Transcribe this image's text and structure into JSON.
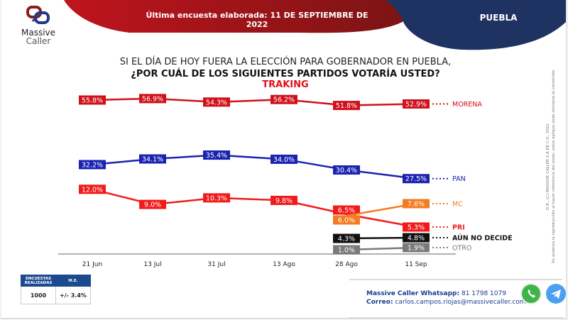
{
  "header": {
    "brand_line1": "Massive",
    "brand_line2": "Caller",
    "last_survey": "Última encuesta elaborada: 11 DE SEPTIEMBRE DE 2022",
    "state": "PUEBLA",
    "colors": {
      "red": "#b5121b",
      "navy": "#1e3362"
    }
  },
  "question": {
    "line1": "SI EL DÍA DE HOY FUERA LA ELECCIÓN PARA GOBERNADOR EN PUEBLA,",
    "line2": "¿POR CUÁL DE LOS SIGUIENTES PARTIDOS VOTARÍA USTED?",
    "line3": "TRAKING"
  },
  "chart_data": {
    "type": "line",
    "title": "TRAKING",
    "categories": [
      "21 Jun",
      "13 Jul",
      "31 Jul",
      "13 Ago",
      "28 Ago",
      "11 Sep"
    ],
    "series": [
      {
        "name": "MORENA",
        "color": "#d0111b",
        "values": [
          55.8,
          56.9,
          54.3,
          56.2,
          51.8,
          52.9
        ]
      },
      {
        "name": "PAN",
        "color": "#1a23b0",
        "values": [
          32.2,
          34.1,
          35.4,
          34.0,
          30.4,
          27.5
        ]
      },
      {
        "name": "PRI",
        "color": "#f21b1b",
        "values": [
          12.0,
          9.0,
          10.3,
          9.8,
          6.5,
          5.3
        ]
      },
      {
        "name": "MC",
        "color": "#f47b20",
        "values": [
          null,
          null,
          null,
          null,
          6.0,
          7.6
        ]
      },
      {
        "name": "AÚN NO DECIDE",
        "color": "#111111",
        "values": [
          null,
          null,
          null,
          null,
          4.3,
          4.8
        ]
      },
      {
        "name": "OTRO",
        "color": "#7a7a7a",
        "values": [
          null,
          null,
          null,
          null,
          1.0,
          1.9
        ]
      }
    ],
    "value_suffix": "%",
    "legend": "right-end-of-lines",
    "grid": false
  },
  "stats": {
    "col1_header": "ENCUESTAS REALIZADAS",
    "col2_header": "M.E.",
    "col1_value": "1000",
    "col2_value": "+/- 3.4%"
  },
  "footer": {
    "whatsapp_label": "Massive Caller Whatsapp:",
    "whatsapp_number": "81 1798 1079",
    "email_label": "Correo:",
    "email": "carlos.campos.riojas@massivecaller.com",
    "icons": [
      "whatsapp-icon",
      "telegram-icon"
    ]
  },
  "copyright": {
    "line1": "D.R., (C) MASSIVE CALLER S.A DE C.V., 2022",
    "line2": "Se autoriza la reproducción al hacer referencia del autor, salvo aplique veda electoral al contenido"
  }
}
